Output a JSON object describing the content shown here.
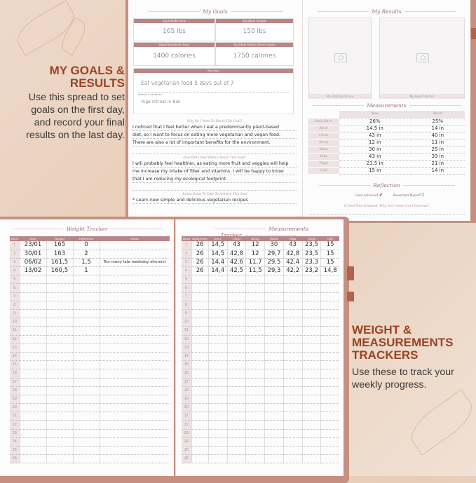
{
  "promo": {
    "goals_heading": "MY GOALS & RESULTS",
    "goals_text": "Use this spread to set goals on the first day, and record your final results on the last day.",
    "trackers_heading": "WEIGHT & MEASUREMENTS TRACKERS",
    "trackers_text": "Use these to track your weekly progress."
  },
  "colors": {
    "accent": "#9a4423",
    "header_pink": "#b98586",
    "cover": "#c78f80",
    "background": "#eed9c9"
  },
  "goals_page": {
    "title": "My Goals",
    "weight_now_label": "My Weight Now",
    "weight_now": "165 lbs",
    "ideal_weight_label": "My Ideal Weight",
    "ideal_weight": "150 lbs",
    "bmr_label": "Basal Metabolic Rate",
    "bmr": "1400 calories",
    "calorie_intake_label": "My Ideal Daily Calorie Intake",
    "calorie_intake": "1750 calories",
    "goal_label": "My Goal",
    "goal": "Eat vegetarian food 5 days out of 7",
    "reward_label": "Reward If Achieved",
    "reward": "Yoga retreat in Bali",
    "why_label": "Why Do I Want To Reach This Goal?",
    "why_lines": [
      "I noticed that I feel better when I eat a predominantly plant-based",
      "diet, so I want to focus on eating more vegetarian and vegan food.",
      "There are also a lot of important benefits for the environment.",
      ""
    ],
    "feel_label": "How Will I Feel When I Reach This Goal?",
    "feel_lines": [
      "I will probably feel healthier, as eating more fruit and veggies will help",
      "me increase my intake of fiber and vitamins. I will be happy to know",
      "that I am reducing my ecological footprint.",
      ""
    ],
    "steps_label": "Action Steps To Take To Achieve This Goal",
    "steps_lines": [
      "* Learn new simple and delicious vegetarian recipes"
    ]
  },
  "results_page": {
    "title": "My Results",
    "starting_picture": "My Starting Picture",
    "result_picture": "My Result Picture",
    "measurements_title": "Measurements",
    "col_now": "Now",
    "col_result": "Result",
    "rows": [
      {
        "label": "Body Fat %",
        "now": "26%",
        "result": "25%"
      },
      {
        "label": "Neck",
        "now": "14.5 in",
        "result": "14 in"
      },
      {
        "label": "Chest",
        "now": "43 in",
        "result": "40 in"
      },
      {
        "label": "Bicep",
        "now": "12 in",
        "result": "11 in"
      },
      {
        "label": "Waist",
        "now": "30 in",
        "result": "25 in"
      },
      {
        "label": "Hips",
        "now": "43 in",
        "result": "39 in"
      },
      {
        "label": "Thigh",
        "now": "23.5 in",
        "result": "21 in"
      },
      {
        "label": "Calf",
        "now": "15 in",
        "result": "14 in"
      }
    ],
    "reflection_title": "Reflection",
    "goal_achieved": "Goal Achieved",
    "goal_achieved_checked": true,
    "rewarded": "Rewarded Myself",
    "rewarded_checked": false,
    "improve_label": "If Goal Not Achieved, Why Not? How Can I Improve?"
  },
  "weight_tracker": {
    "title": "Weight Tracker",
    "headers": [
      "Week",
      "Date",
      "Weight",
      "Difference",
      "Notes"
    ],
    "rows": [
      [
        "23/01",
        "165",
        "0",
        ""
      ],
      [
        "30/01",
        "163",
        "2",
        ""
      ],
      [
        "06/02",
        "161,5",
        "1,5",
        "Too many late weekday dinners!"
      ],
      [
        "13/02",
        "160,5",
        "1",
        ""
      ]
    ]
  },
  "measurements_tracker": {
    "title": "Measurements Tracker",
    "headers": [
      "Week",
      "Body Fat%",
      "Neck",
      "Chest",
      "Bicep",
      "Waist",
      "Hips",
      "Thigh",
      "Calf"
    ],
    "rows": [
      [
        "26",
        "14,5",
        "43",
        "12",
        "30",
        "43",
        "23,5",
        "15"
      ],
      [
        "26",
        "14,5",
        "42,8",
        "12",
        "29,7",
        "42,8",
        "23,5",
        "15"
      ],
      [
        "26",
        "14,4",
        "42,6",
        "11,7",
        "29,5",
        "42,4",
        "23,3",
        "15"
      ],
      [
        "26",
        "14,4",
        "42,5",
        "11,5",
        "29,3",
        "42,2",
        "23,2",
        "14,8"
      ]
    ]
  },
  "week_numbers": [
    "1",
    "2",
    "3",
    "4",
    "5",
    "6",
    "7",
    "8",
    "9",
    "10",
    "11",
    "12",
    "13",
    "14",
    "15",
    "16",
    "17",
    "18",
    "19",
    "20",
    "21",
    "22",
    "23",
    "24",
    "25",
    "26"
  ]
}
